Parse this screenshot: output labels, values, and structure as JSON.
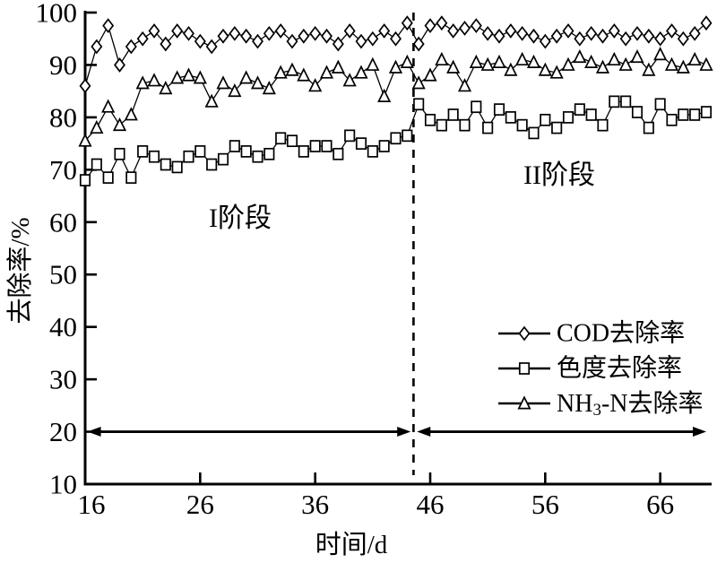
{
  "figure": {
    "xlabel": "时间/d",
    "ylabel": "去除率/%",
    "phase1_label": "I阶段",
    "phase2_label": "II阶段"
  },
  "chart_data": {
    "type": "line",
    "title": "",
    "xlabel": "时间/d",
    "ylabel": "去除率/%",
    "xlim": [
      16,
      70
    ],
    "ylim": [
      10,
      100
    ],
    "xticks": [
      16,
      26,
      36,
      46,
      56,
      66
    ],
    "yticks": [
      10,
      20,
      30,
      40,
      50,
      60,
      70,
      80,
      90,
      100
    ],
    "grid": false,
    "line_color": "#000000",
    "background": "#ffffff",
    "x": [
      16,
      17,
      18,
      19,
      20,
      21,
      22,
      23,
      24,
      25,
      26,
      27,
      28,
      29,
      30,
      31,
      32,
      33,
      34,
      35,
      36,
      37,
      38,
      39,
      40,
      41,
      42,
      43,
      44,
      45,
      46,
      47,
      48,
      49,
      50,
      51,
      52,
      53,
      54,
      55,
      56,
      57,
      58,
      59,
      60,
      61,
      62,
      63,
      64,
      65,
      66,
      67,
      68,
      69,
      70
    ],
    "series": [
      {
        "key": "cod",
        "name": "COD去除率",
        "marker": "diamond",
        "values": [
          86,
          93.5,
          97.5,
          90,
          93.5,
          95,
          96.5,
          94,
          96.5,
          96,
          94.5,
          93.5,
          95.5,
          96,
          95.5,
          94.5,
          96,
          96.5,
          94.5,
          95.5,
          96,
          95.5,
          94,
          96.5,
          94.5,
          95,
          96.5,
          95,
          98,
          94,
          97.5,
          98,
          96.5,
          97,
          97.5,
          96,
          95.5,
          96.5,
          96,
          95.5,
          94.5,
          95.5,
          96.5,
          95,
          96,
          95.5,
          96.5,
          95,
          96,
          95.5,
          95,
          96.5,
          95,
          96,
          98
        ]
      },
      {
        "key": "chroma",
        "name": "色度去除率",
        "marker": "square",
        "values": [
          68,
          71,
          68.5,
          73,
          68.5,
          73.5,
          72.5,
          71,
          70.5,
          72.5,
          73.5,
          71,
          72,
          74.5,
          73.5,
          72.5,
          73,
          76,
          75.5,
          73.5,
          74.5,
          74.5,
          73,
          76.5,
          75,
          73.5,
          74.5,
          76,
          76.5,
          82.5,
          79.5,
          78.5,
          80.5,
          78.5,
          82,
          78,
          81.5,
          80,
          78.5,
          77,
          79.5,
          78,
          80,
          81.5,
          80.5,
          78.5,
          83,
          83,
          81,
          78,
          82.5,
          79.5,
          80.5,
          80.5,
          81
        ]
      },
      {
        "key": "nh3n",
        "name": "NH3-N去除率",
        "marker": "triangle",
        "label_parts": [
          {
            "t": "NH"
          },
          {
            "t": "3",
            "sub": true
          },
          {
            "t": "-N去除率"
          }
        ],
        "values": [
          75.5,
          78,
          82,
          78.5,
          80.5,
          86.5,
          87,
          85.5,
          87.5,
          88,
          87.5,
          83,
          86.5,
          85,
          87.5,
          86.5,
          85.5,
          88.5,
          89,
          88,
          86,
          88.5,
          89.5,
          87,
          88.5,
          90,
          84,
          89.5,
          90.5,
          86.5,
          88,
          91,
          89.5,
          86,
          90.5,
          90,
          90.5,
          89,
          91,
          90.5,
          89,
          88.5,
          90,
          91.5,
          90.5,
          89.5,
          91,
          90,
          91.5,
          89,
          92,
          90,
          89.5,
          91,
          90
        ]
      }
    ],
    "legend": {
      "position": "right-middle",
      "entries": [
        {
          "key": "cod",
          "label": "COD去除率",
          "marker": "diamond"
        },
        {
          "key": "chroma",
          "label": "色度去除率",
          "marker": "square"
        },
        {
          "key": "nh3n",
          "label": "NH3-N去除率",
          "marker": "triangle",
          "label_parts": [
            {
              "t": "NH"
            },
            {
              "t": "3",
              "sub": true
            },
            {
              "t": "-N去除率"
            }
          ]
        }
      ]
    },
    "annotations": {
      "divider_x": 44.55,
      "divider_style": "dashed",
      "phase_arrows": [
        {
          "name": "phase-1",
          "from": 16.2,
          "to": 44.3,
          "y": 20
        },
        {
          "name": "phase-2",
          "from": 44.85,
          "to": 70,
          "y": 20
        }
      ],
      "phase_labels": [
        {
          "text": "I阶段",
          "x": 27.5,
          "y": 61
        },
        {
          "text": "II阶段",
          "x": 57,
          "y": 69.5
        }
      ]
    }
  }
}
